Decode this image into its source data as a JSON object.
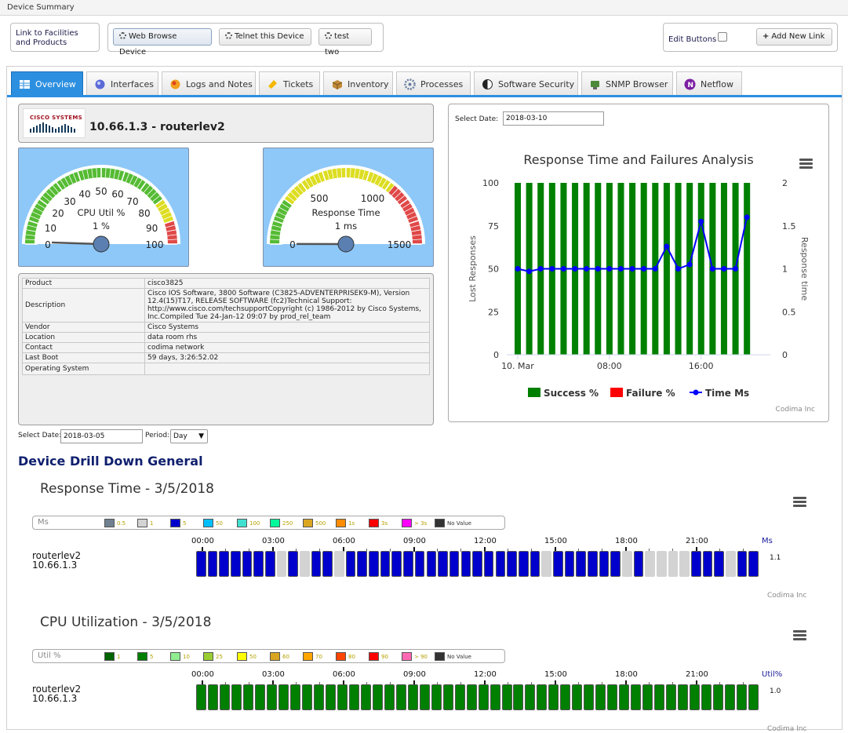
{
  "window": {
    "title": "Device Summary"
  },
  "toolbar": {
    "link_label": "Link to Facilities and Products",
    "buttons": [
      "Web Browse Device",
      "Telnet this Device",
      "test two"
    ],
    "edit_label": "Edit Buttons",
    "add_link_label": "Add New Link"
  },
  "tabs": [
    "Overview",
    "Interfaces",
    "Logs and Notes",
    "Tickets",
    "Inventory",
    "Processes",
    "Software Security",
    "SNMP Browser",
    "Netflow"
  ],
  "device": {
    "logo_text": "CISCO SYSTEMS",
    "name": "10.66.1.3 - routerlev2"
  },
  "gauges": {
    "cpu": {
      "label": "CPU Util %",
      "value_text": "1 %",
      "value": 1,
      "ticks": [
        "0",
        "10",
        "20",
        "30",
        "40",
        "50",
        "60",
        "70",
        "80",
        "90",
        "100"
      ]
    },
    "response": {
      "label": "Response Time",
      "value_text": "1 ms",
      "value": 1,
      "ticks": [
        "0",
        "500",
        "1000",
        "1500"
      ]
    }
  },
  "info": {
    "rows": [
      [
        "Product",
        "cisco3825"
      ],
      [
        "Description",
        "Cisco IOS Software, 3800 Software (C3825-ADVENTERPRISEK9-M), Version 12.4(15)T17, RELEASE SOFTWARE (fc2)Technical Support: http://www.cisco.com/techsupportCopyright (c) 1986-2012 by Cisco Systems, Inc.Compiled Tue 24-Jan-12 09:07 by prod_rel_team"
      ],
      [
        "Vendor",
        "Cisco Systems"
      ],
      [
        "Location",
        "data room rhs"
      ],
      [
        "Contact",
        "codima network"
      ],
      [
        "Last Boot",
        "59 days, 3:26:52.02"
      ],
      [
        "Operating System",
        ""
      ]
    ]
  },
  "filters": {
    "select_date_label": "Select Date:",
    "date": "2018-03-05",
    "period_label": "Period:",
    "period": "Day"
  },
  "analysis": {
    "select_date_label": "Select Date:",
    "date": "2018-03-10",
    "credit": "Codima Inc",
    "legend": [
      "Success %",
      "Failure %",
      "Time Ms"
    ]
  },
  "chart_data": [
    {
      "type": "bar",
      "title": "Response Time and Failures Analysis",
      "ylabel": "Lost Responses",
      "y2label": "Response time",
      "ylim": [
        0,
        100
      ],
      "y2lim": [
        0,
        2
      ],
      "yticks": [
        "100",
        "75",
        "50",
        "25",
        "0"
      ],
      "y2ticks": [
        "2",
        "1.5",
        "1",
        "0.5",
        "0"
      ],
      "xticks": [
        "10. Mar",
        "08:00",
        "16:00"
      ],
      "series": [
        {
          "name": "Success %",
          "color": "#008000",
          "values": [
            100,
            100,
            100,
            100,
            100,
            100,
            100,
            100,
            100,
            100,
            100,
            100,
            100,
            100,
            100,
            100,
            100,
            100,
            100,
            100,
            100
          ]
        },
        {
          "name": "Failure %",
          "color": "#ff0000",
          "values": [
            0,
            0,
            0,
            0,
            0,
            0,
            0,
            0,
            0,
            0,
            0,
            0,
            0,
            0,
            0,
            0,
            0,
            0,
            0,
            0,
            0
          ]
        },
        {
          "name": "Time Ms",
          "color": "#0000ff",
          "axis": "right",
          "values": [
            1,
            0.97,
            1,
            1,
            1,
            1,
            1,
            1,
            1,
            1,
            1,
            1,
            1,
            1.26,
            1,
            1.05,
            1.55,
            1,
            1,
            1,
            1.6
          ]
        }
      ]
    },
    {
      "type": "heatmap",
      "title": "Response Time - 3/5/2018",
      "legend_title": "Ms",
      "legend": [
        {
          "label": "0.5",
          "color": "#708090"
        },
        {
          "label": "1",
          "color": "#d3d3d3"
        },
        {
          "label": "5",
          "color": "#0000cd"
        },
        {
          "label": "50",
          "color": "#00bfff"
        },
        {
          "label": "100",
          "color": "#40e0d0"
        },
        {
          "label": "250",
          "color": "#00fa9a"
        },
        {
          "label": "500",
          "color": "#daa520"
        },
        {
          "label": "1s",
          "color": "#ff8c00"
        },
        {
          "label": "3s",
          "color": "#ff0000"
        },
        {
          "label": "> 3s",
          "color": "#ff00ff"
        },
        {
          "label": "No Value",
          "color": "#333333"
        }
      ],
      "hours": [
        "00:00",
        "03:00",
        "06:00",
        "09:00",
        "12:00",
        "15:00",
        "18:00",
        "21:00"
      ],
      "unit": "Ms",
      "row_label": [
        "routerlev2",
        "10.66.1.3"
      ],
      "row_value": "1.1",
      "cells": [
        "5",
        "5",
        "5",
        "5",
        "5",
        "5",
        "5",
        "1",
        "5",
        "1",
        "5",
        "5",
        "1",
        "5",
        "5",
        "5",
        "5",
        "5",
        "5",
        "5",
        "5",
        "5",
        "5",
        "5",
        "5",
        "5",
        "5",
        "5",
        "5",
        "5",
        "1",
        "5",
        "5",
        "5",
        "5",
        "5",
        "5",
        "1",
        "5",
        "1",
        "1",
        "1",
        "1",
        "5",
        "5",
        "5",
        "1",
        "5",
        "5"
      ],
      "credit": "Codima Inc"
    },
    {
      "type": "heatmap",
      "title": "CPU Utilization - 3/5/2018",
      "legend_title": "Util %",
      "legend": [
        {
          "label": "1",
          "color": "#006400"
        },
        {
          "label": "5",
          "color": "#008000"
        },
        {
          "label": "10",
          "color": "#90ee90"
        },
        {
          "label": "25",
          "color": "#9acd32"
        },
        {
          "label": "50",
          "color": "#ffff00"
        },
        {
          "label": "60",
          "color": "#daa520"
        },
        {
          "label": "70",
          "color": "#ffa500"
        },
        {
          "label": "80",
          "color": "#ff4500"
        },
        {
          "label": "90",
          "color": "#ff0000"
        },
        {
          "label": "> 90",
          "color": "#ff69b4"
        },
        {
          "label": "No Value",
          "color": "#333333"
        }
      ],
      "hours": [
        "00:00",
        "03:00",
        "06:00",
        "09:00",
        "12:00",
        "15:00",
        "18:00",
        "21:00"
      ],
      "unit": "Util%",
      "row_label": [
        "routerlev2",
        "10.66.1.3"
      ],
      "row_value": "1.0",
      "cells": [
        "5",
        "5",
        "5",
        "5",
        "5",
        "5",
        "5",
        "5",
        "5",
        "5",
        "5",
        "5",
        "5",
        "5",
        "5",
        "5",
        "5",
        "5",
        "5",
        "5",
        "5",
        "5",
        "5",
        "5",
        "5",
        "5",
        "5",
        "5",
        "5",
        "5",
        "5",
        "5",
        "5",
        "5",
        "5",
        "5",
        "5",
        "5",
        "5",
        "5",
        "5",
        "5",
        "5",
        "5",
        "5",
        "5",
        "5",
        "5"
      ],
      "credit": "Codima Inc"
    }
  ],
  "sections": {
    "drilldown_title": "Device Drill Down General"
  }
}
